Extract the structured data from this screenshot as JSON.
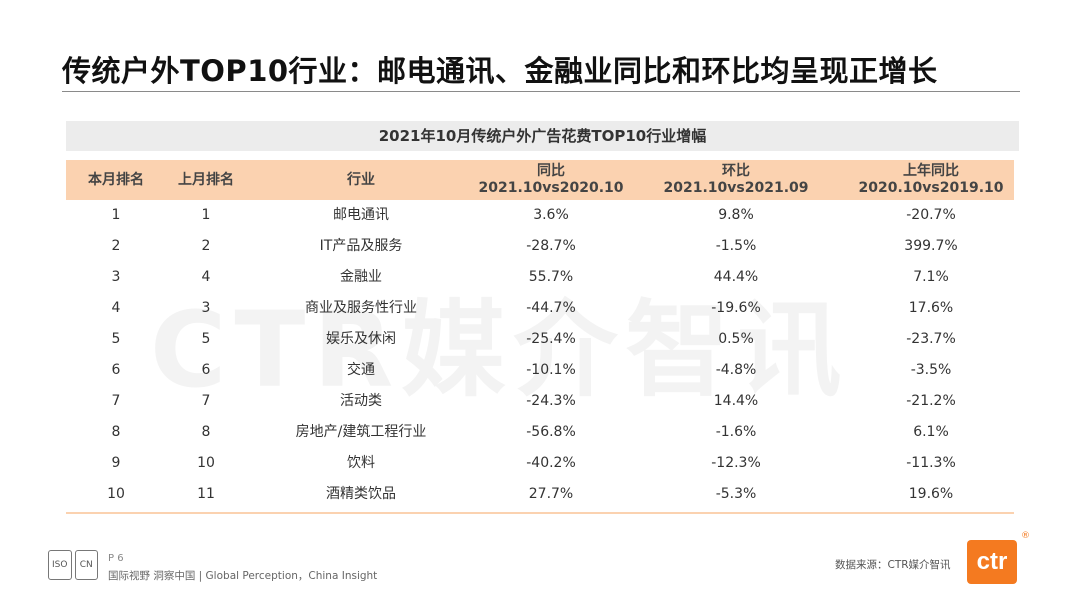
{
  "slide": {
    "title": "传统户外TOP10行业：邮电通讯、金融业同比和环比均呈现正增长",
    "watermark": "CTR媒介智讯"
  },
  "table": {
    "caption": "2021年10月传统户外广告花费TOP10行业增幅",
    "headers": [
      {
        "line1": "本月排名",
        "line2": ""
      },
      {
        "line1": "上月排名",
        "line2": ""
      },
      {
        "line1": "行业",
        "line2": ""
      },
      {
        "line1": "同比",
        "line2": "2021.10vs2020.10"
      },
      {
        "line1": "环比",
        "line2": "2021.10vs2021.09"
      },
      {
        "line1": "上年同比",
        "line2": "2020.10vs2019.10"
      }
    ],
    "rows": [
      [
        "1",
        "1",
        "邮电通讯",
        "3.6%",
        "9.8%",
        "-20.7%"
      ],
      [
        "2",
        "2",
        "IT产品及服务",
        "-28.7%",
        "-1.5%",
        "399.7%"
      ],
      [
        "3",
        "4",
        "金融业",
        "55.7%",
        "44.4%",
        "7.1%"
      ],
      [
        "4",
        "3",
        "商业及服务性行业",
        "-44.7%",
        "-19.6%",
        "17.6%"
      ],
      [
        "5",
        "5",
        "娱乐及休闲",
        "-25.4%",
        "0.5%",
        "-23.7%"
      ],
      [
        "6",
        "6",
        "交通",
        "-10.1%",
        "-4.8%",
        "-3.5%"
      ],
      [
        "7",
        "7",
        "活动类",
        "-24.3%",
        "14.4%",
        "-21.2%"
      ],
      [
        "8",
        "8",
        "房地产/建筑工程行业",
        "-56.8%",
        "-1.6%",
        "6.1%"
      ],
      [
        "9",
        "10",
        "饮料",
        "-40.2%",
        "-12.3%",
        "-11.3%"
      ],
      [
        "10",
        "11",
        "酒精类饮品",
        "27.7%",
        "-5.3%",
        "19.6%"
      ]
    ]
  },
  "footer": {
    "page": "P 6",
    "slogan": "国际视野  洞察中国 | Global Perception，China Insight",
    "source": "数据来源：CTR媒介智讯",
    "brand": "ctr",
    "registered": "®",
    "badge_left": "ISO",
    "badge_right": "CN"
  },
  "colors": {
    "header_bg": "#fbd2b0",
    "caption_bg": "#ececec",
    "brand_orange": "#f47a20"
  }
}
